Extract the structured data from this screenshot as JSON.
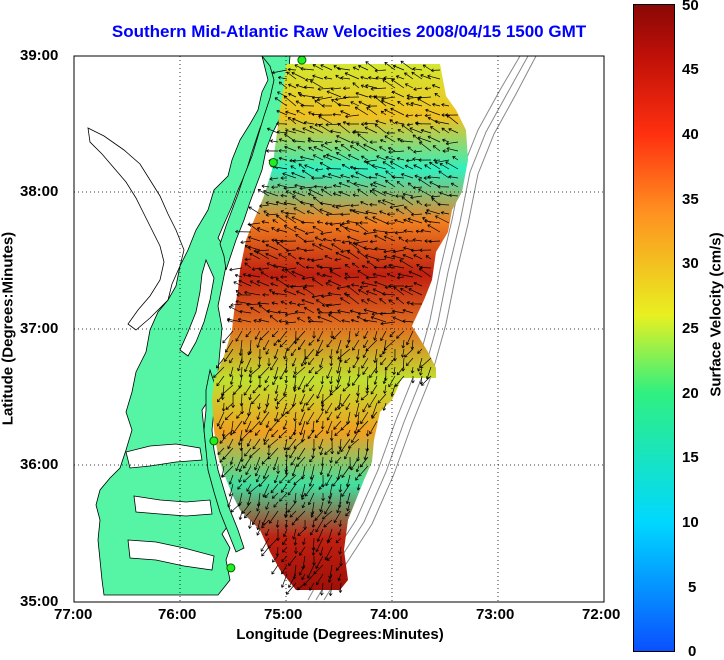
{
  "title": "Southern Mid-Atlantic Raw Velocities 2008/04/15 1500 GMT",
  "x_axis": {
    "label": "Longitude (Degrees:Minutes)",
    "ticks": [
      "77:00",
      "76:00",
      "75:00",
      "74:00",
      "73:00",
      "72:00"
    ]
  },
  "y_axis": {
    "label": "Latitude (Degrees:Minutes)",
    "ticks": [
      "39:00",
      "38:00",
      "37:00",
      "36:00",
      "35:00"
    ]
  },
  "colorbar": {
    "label": "Surface Velocity (cm/s)",
    "ticks": [
      "50",
      "45",
      "40",
      "35",
      "30",
      "25",
      "20",
      "15",
      "10",
      "5",
      "0"
    ],
    "min": 0,
    "max": 50
  },
  "colors": {
    "title": "#0000ff",
    "land": "#55f5a5",
    "gridline": "#000000"
  },
  "map_data": {
    "lon_range": [
      -77,
      -72
    ],
    "lat_range": [
      35,
      39
    ],
    "field": "surface current velocity (cm/s)",
    "stations": [
      {
        "lon": -74.85,
        "lat": 38.97
      },
      {
        "lon": -75.12,
        "lat": 38.22
      },
      {
        "lon": -75.68,
        "lat": 36.18
      },
      {
        "lon": -75.52,
        "lat": 35.25
      }
    ]
  }
}
